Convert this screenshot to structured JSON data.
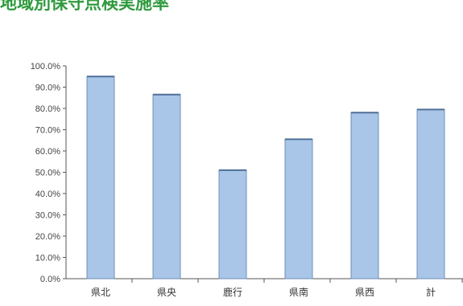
{
  "chart_data": {
    "type": "bar",
    "title": "地域別保守点検実施率",
    "categories": [
      "県北",
      "県央",
      "鹿行",
      "県南",
      "県西",
      "計"
    ],
    "values": [
      95.0,
      86.5,
      51.0,
      65.5,
      78.0,
      79.5
    ],
    "ylim": [
      0,
      100
    ],
    "y_ticks": [
      0,
      10,
      20,
      30,
      40,
      50,
      60,
      70,
      80,
      90,
      100
    ],
    "y_tick_labels": [
      "0.0%",
      "10.0%",
      "20.0%",
      "30.0%",
      "40.0%",
      "50.0%",
      "60.0%",
      "70.0%",
      "80.0%",
      "90.0%",
      "100.0%"
    ],
    "xlabel": "",
    "ylabel": "",
    "grid": false,
    "bar_color": "#a9c6e8",
    "bar_edge_color": "#6f8fb4",
    "title_color": "#2f9a3d"
  }
}
